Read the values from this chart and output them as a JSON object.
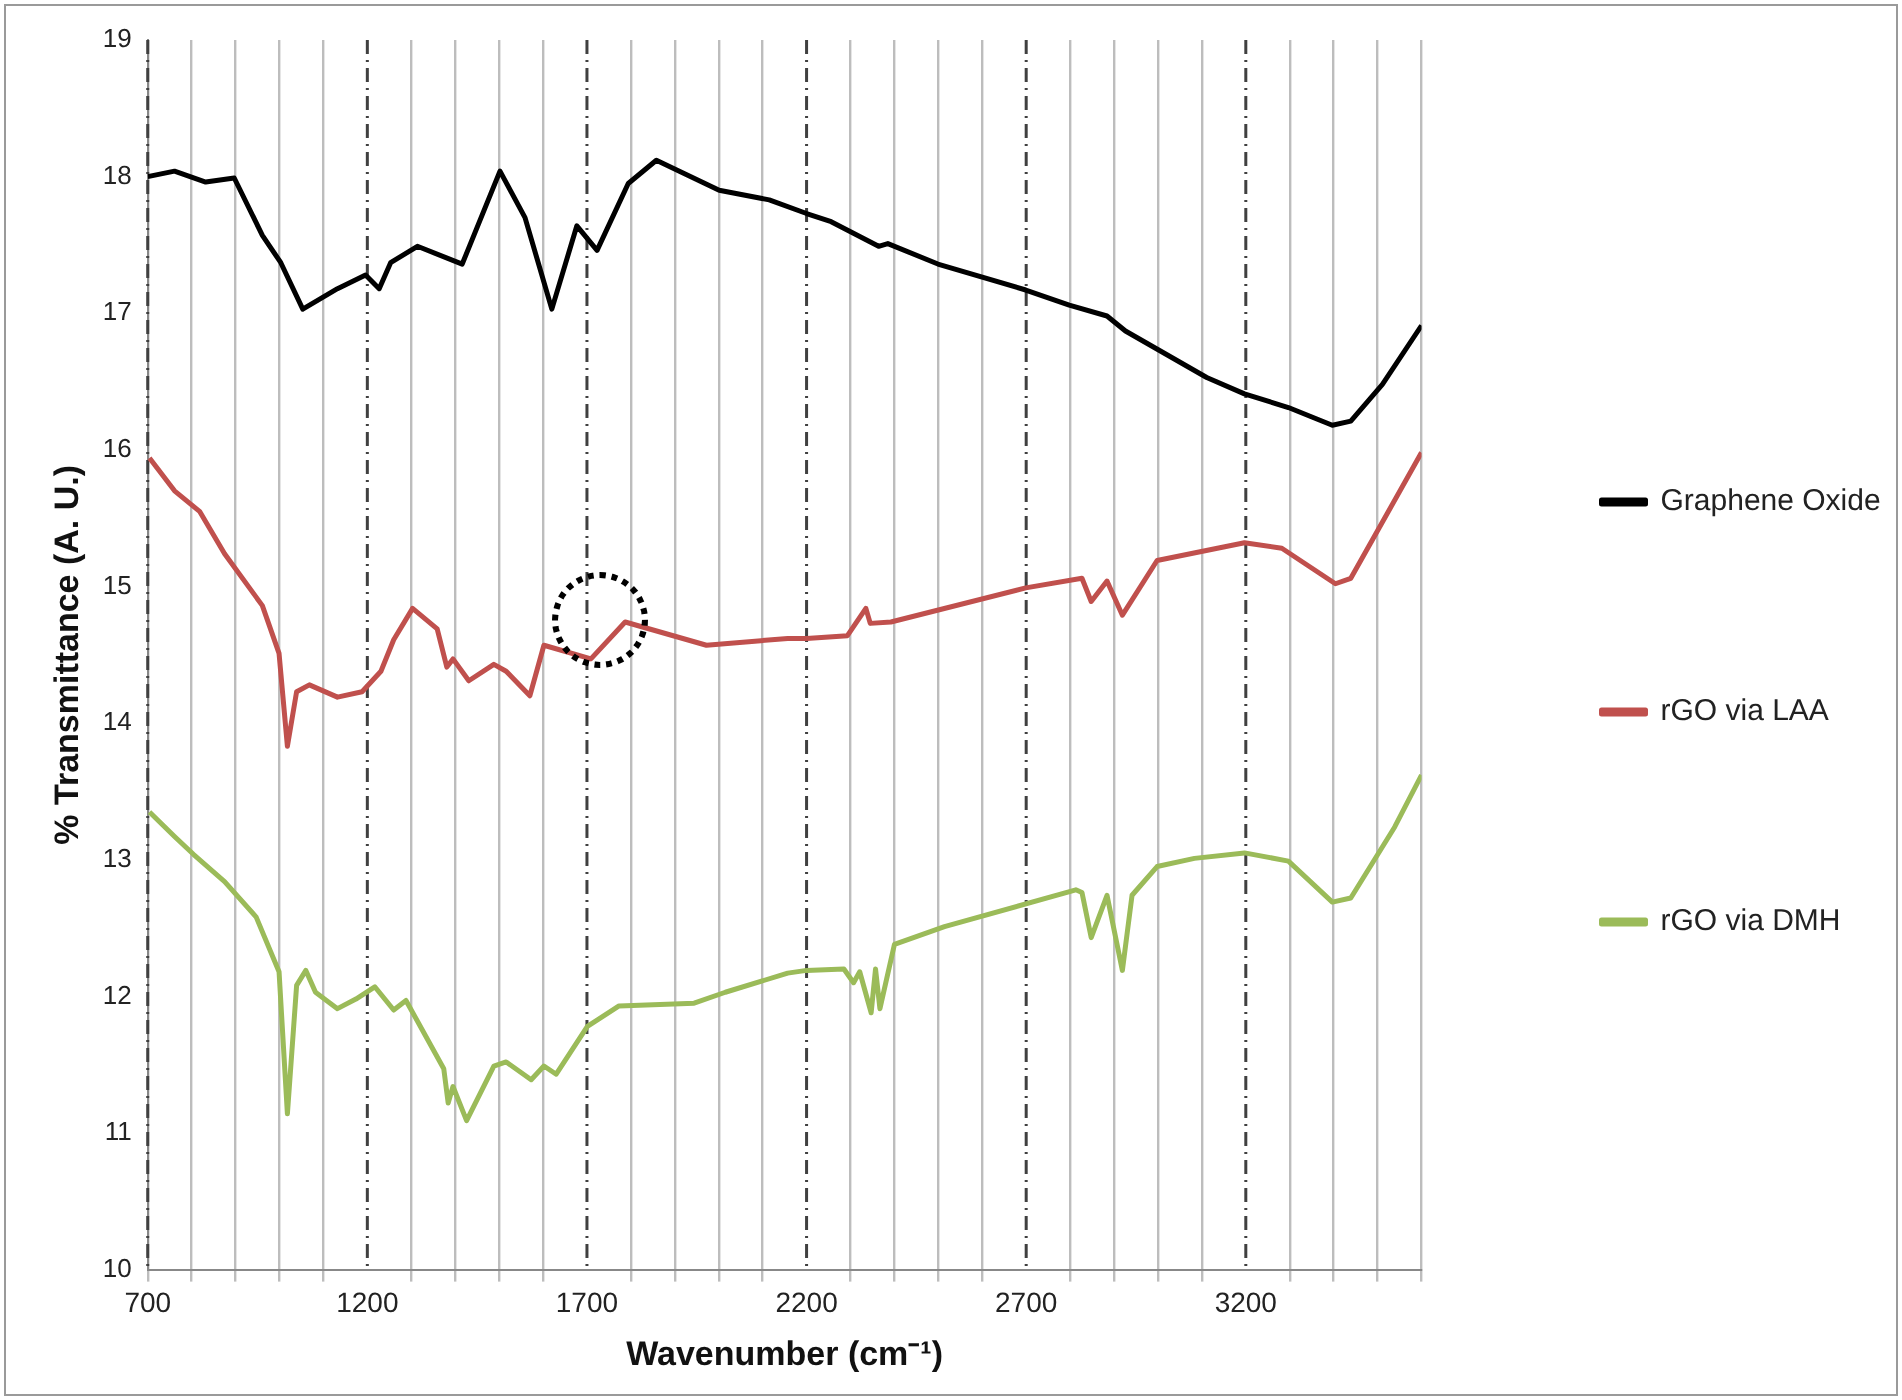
{
  "chart_data": {
    "type": "line",
    "xlabel": "Wavenumber (cm⁻¹)",
    "ylabel": "% Transmittance (A. U.)",
    "xlim": [
      700,
      3600
    ],
    "xticks": [
      700,
      {
        "value": 800,
        "label": null
      },
      {
        "value": 900,
        "label": null
      },
      {
        "value": 1000,
        "label": null
      },
      {
        "value": 1100,
        "label": null
      },
      1200,
      {
        "value": 1300,
        "label": null
      },
      {
        "value": 1400,
        "label": null
      },
      {
        "value": 1500,
        "label": null
      },
      {
        "value": 1600,
        "label": null
      },
      1700,
      {
        "value": 1800,
        "label": null
      },
      {
        "value": 1900,
        "label": null
      },
      {
        "value": 2000,
        "label": null
      },
      {
        "value": 2100,
        "label": null
      },
      2200,
      {
        "value": 2300,
        "label": null
      },
      {
        "value": 2400,
        "label": null
      },
      {
        "value": 2500,
        "label": null
      },
      {
        "value": 2600,
        "label": null
      },
      2700,
      {
        "value": 2800,
        "label": null
      },
      {
        "value": 2900,
        "label": null
      },
      {
        "value": 3000,
        "label": null
      },
      {
        "value": 3100,
        "label": null
      },
      3200,
      {
        "value": 3300,
        "label": null
      },
      {
        "value": 3400,
        "label": null
      },
      {
        "value": 3500,
        "label": null
      },
      {
        "value": 3600,
        "label": null
      }
    ],
    "ylim": [
      10,
      19
    ],
    "yticks": [
      10,
      11,
      12,
      13,
      14,
      15,
      16,
      17,
      18,
      19
    ],
    "grid": "x",
    "legend": "right",
    "marker": "none",
    "series": [
      {
        "name": "Graphene Oxide",
        "color": "#000000",
        "x": [
          700,
          761,
          832,
          897,
          961,
          1003,
          1053,
          1132,
          1196,
          1227,
          1253,
          1314,
          1416,
          1502,
          1559,
          1620,
          1677,
          1723,
          1794,
          1858,
          2001,
          2115,
          2200,
          2256,
          2364,
          2385,
          2499,
          2699,
          2798,
          2884,
          2926,
          3111,
          3197,
          3297,
          3397,
          3439,
          3511,
          3600
        ],
        "values": [
          18.0,
          18.04,
          17.96,
          17.99,
          17.57,
          17.37,
          17.03,
          17.18,
          17.28,
          17.18,
          17.37,
          17.49,
          17.36,
          18.04,
          17.7,
          17.03,
          17.64,
          17.46,
          17.95,
          18.12,
          17.9,
          17.83,
          17.73,
          17.67,
          17.49,
          17.51,
          17.36,
          17.17,
          17.06,
          16.98,
          16.87,
          16.53,
          16.41,
          16.31,
          16.18,
          16.21,
          16.48,
          16.91
        ]
      },
      {
        "name": "rGO via LAA",
        "color": "#c0504d",
        "x": [
          704,
          761,
          818,
          875,
          961,
          999,
          1018,
          1039,
          1068,
          1132,
          1188,
          1231,
          1260,
          1303,
          1359,
          1381,
          1395,
          1431,
          1488,
          1516,
          1570,
          1602,
          1709,
          1787,
          1972,
          2157,
          2200,
          2293,
          2335,
          2345,
          2392,
          2699,
          2827,
          2848,
          2884,
          2919,
          2998,
          3197,
          3282,
          3404,
          3439,
          3600
        ],
        "values": [
          15.94,
          15.7,
          15.55,
          15.24,
          14.86,
          14.51,
          13.83,
          14.23,
          14.28,
          14.19,
          14.23,
          14.38,
          14.61,
          14.84,
          14.69,
          14.41,
          14.47,
          14.31,
          14.43,
          14.38,
          14.2,
          14.57,
          14.47,
          14.74,
          14.57,
          14.62,
          14.62,
          14.64,
          14.84,
          14.73,
          14.74,
          14.99,
          15.06,
          14.89,
          15.04,
          14.79,
          15.19,
          15.32,
          15.28,
          15.02,
          15.06,
          15.98
        ]
      },
      {
        "name": "rGO via DMH",
        "color": "#9bbb59",
        "x": [
          704,
          761,
          804,
          875,
          947,
          999,
          1018,
          1039,
          1060,
          1082,
          1132,
          1174,
          1217,
          1260,
          1288,
          1374,
          1384,
          1395,
          1426,
          1488,
          1516,
          1573,
          1602,
          1630,
          1701,
          1773,
          1944,
          2015,
          2157,
          2200,
          2285,
          2307,
          2321,
          2347,
          2357,
          2367,
          2400,
          2514,
          2813,
          2827,
          2848,
          2884,
          2919,
          2941,
          2998,
          3083,
          3197,
          3297,
          3397,
          3439,
          3539,
          3600
        ],
        "values": [
          13.35,
          13.17,
          13.04,
          12.84,
          12.58,
          12.18,
          11.14,
          12.08,
          12.19,
          12.03,
          11.91,
          11.98,
          12.07,
          11.9,
          11.97,
          11.47,
          11.22,
          11.34,
          11.09,
          11.49,
          11.52,
          11.39,
          11.49,
          11.43,
          11.78,
          11.93,
          11.95,
          12.03,
          12.17,
          12.19,
          12.2,
          12.1,
          12.18,
          11.88,
          12.2,
          11.91,
          12.38,
          12.51,
          12.78,
          12.76,
          12.43,
          12.74,
          12.19,
          12.74,
          12.95,
          13.01,
          13.05,
          12.99,
          12.69,
          12.72,
          13.24,
          13.62
        ]
      }
    ]
  }
}
